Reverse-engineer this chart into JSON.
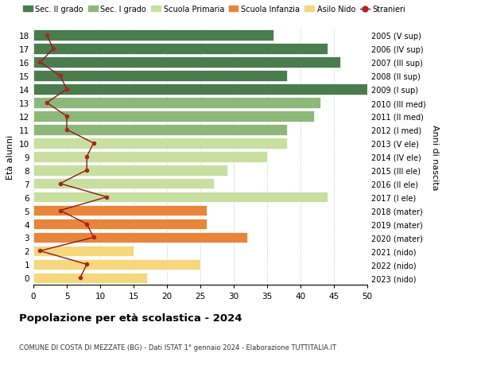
{
  "ages": [
    0,
    1,
    2,
    3,
    4,
    5,
    6,
    7,
    8,
    9,
    10,
    11,
    12,
    13,
    14,
    15,
    16,
    17,
    18
  ],
  "bar_values": [
    17,
    25,
    15,
    32,
    26,
    26,
    44,
    27,
    29,
    35,
    38,
    38,
    42,
    43,
    50,
    38,
    46,
    44,
    36
  ],
  "bar_colors": [
    "#f5d77e",
    "#f5d77e",
    "#f5d77e",
    "#e8853a",
    "#e8853a",
    "#e8853a",
    "#c8dfa0",
    "#c8dfa0",
    "#c8dfa0",
    "#c8dfa0",
    "#c8dfa0",
    "#8db87a",
    "#8db87a",
    "#8db87a",
    "#4a7c4e",
    "#4a7c4e",
    "#4a7c4e",
    "#4a7c4e",
    "#4a7c4e"
  ],
  "stranieri_values": [
    7,
    8,
    1,
    9,
    8,
    4,
    11,
    4,
    8,
    8,
    9,
    5,
    5,
    2,
    5,
    4,
    1,
    3,
    2
  ],
  "right_labels": [
    "2023 (nido)",
    "2022 (nido)",
    "2021 (nido)",
    "2020 (mater)",
    "2019 (mater)",
    "2018 (mater)",
    "2017 (I ele)",
    "2016 (II ele)",
    "2015 (III ele)",
    "2014 (IV ele)",
    "2013 (V ele)",
    "2012 (I med)",
    "2011 (II med)",
    "2010 (III med)",
    "2009 (I sup)",
    "2008 (II sup)",
    "2007 (III sup)",
    "2006 (IV sup)",
    "2005 (V sup)"
  ],
  "xlim": [
    0,
    50
  ],
  "xticks": [
    0,
    5,
    10,
    15,
    20,
    25,
    30,
    35,
    40,
    45,
    50
  ],
  "ylabel": "Età alunni",
  "right_ylabel": "Anni di nascita",
  "title": "Popolazione per età scolastica - 2024",
  "subtitle": "COMUNE DI COSTA DI MEZZATE (BG) - Dati ISTAT 1° gennaio 2024 - Elaborazione TUTTITALIA.IT",
  "legend_labels": [
    "Sec. II grado",
    "Sec. I grado",
    "Scuola Primaria",
    "Scuola Infanzia",
    "Asilo Nido",
    "Stranieri"
  ],
  "legend_colors": [
    "#4a7c4e",
    "#8db87a",
    "#c8dfa0",
    "#e8853a",
    "#f5d77e",
    "#b22222"
  ],
  "bar_height": 0.8,
  "bg_color": "#ffffff",
  "grid_color": "#d0d0d0",
  "stranieri_line_color": "#8b1a1a",
  "stranieri_dot_color": "#b22222"
}
